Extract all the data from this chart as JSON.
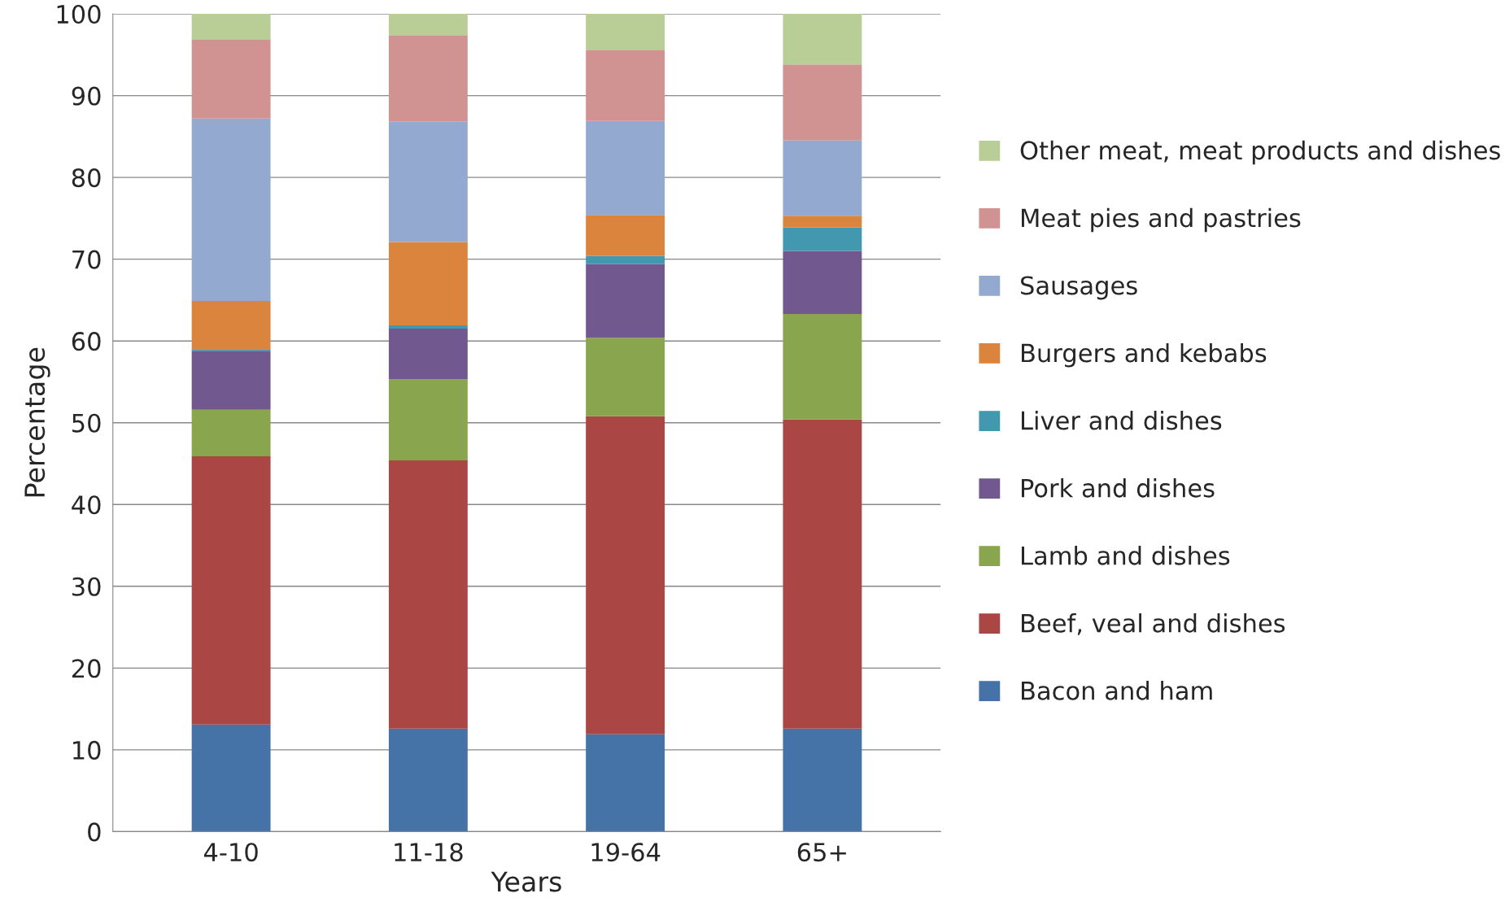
{
  "chart_data": {
    "type": "bar",
    "stacked": true,
    "xlabel": "Years",
    "ylabel": "Percentage",
    "categories": [
      "4-10",
      "11-18",
      "19-64",
      "65+"
    ],
    "ylim": [
      0,
      100
    ],
    "yticks": [
      0,
      10,
      20,
      30,
      40,
      50,
      60,
      70,
      80,
      90,
      100
    ],
    "grid": "y",
    "legend": "right",
    "series": [
      {
        "name": "Bacon and ham",
        "color": "#4572a7",
        "values": [
          13.1,
          12.6,
          11.9,
          12.6
        ]
      },
      {
        "name": "Beef, veal and dishes",
        "color": "#aa4643",
        "values": [
          32.8,
          32.8,
          38.9,
          37.8
        ]
      },
      {
        "name": "Lamb and dishes",
        "color": "#89a54e",
        "values": [
          5.7,
          9.9,
          9.6,
          12.9
        ]
      },
      {
        "name": "Pork and dishes",
        "color": "#71588f",
        "values": [
          7.2,
          6.2,
          9.0,
          7.7
        ]
      },
      {
        "name": "Liver and dishes",
        "color": "#4198af",
        "values": [
          0.2,
          0.4,
          1.0,
          2.9
        ]
      },
      {
        "name": "Burgers and kebabs",
        "color": "#db843d",
        "values": [
          5.9,
          10.2,
          5.0,
          1.4
        ]
      },
      {
        "name": "Sausages",
        "color": "#93a9cf",
        "values": [
          22.3,
          14.7,
          11.5,
          9.2
        ]
      },
      {
        "name": "Meat pies and pastries",
        "color": "#d19392",
        "values": [
          9.7,
          10.6,
          8.7,
          9.3
        ]
      },
      {
        "name": "Other meat, meat products and dishes",
        "color": "#b9cd96",
        "values": [
          3.1,
          2.6,
          4.4,
          6.2
        ]
      }
    ]
  }
}
